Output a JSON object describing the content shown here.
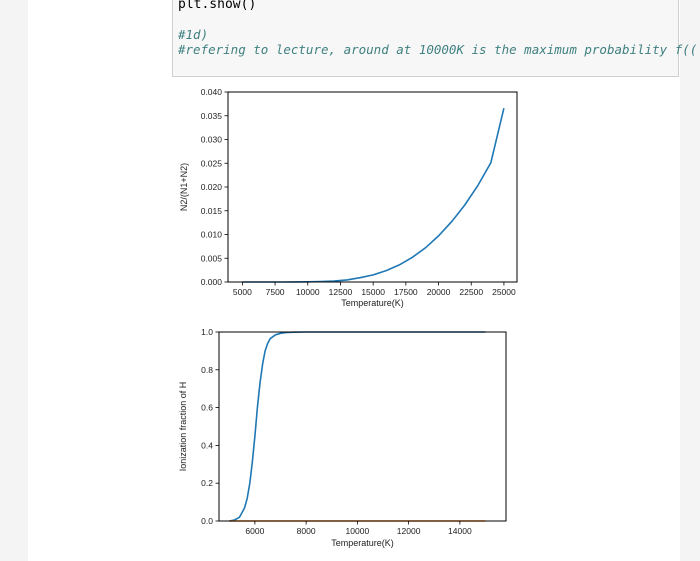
{
  "code_cell": {
    "line1": "plt.show()",
    "line2": "#1d)",
    "line3": "#refering to lecture, around at 10000K is the maximum probability f(("
  },
  "chart_data": [
    {
      "type": "line",
      "title": "",
      "xlabel": "Temperature(K)",
      "ylabel": "N2/(N1+N2)",
      "xlim": [
        3900,
        26000
      ],
      "ylim": [
        0,
        0.04
      ],
      "xticks": [
        5000,
        7500,
        10000,
        12500,
        15000,
        17500,
        20000,
        22500,
        25000
      ],
      "yticks": [
        0.0,
        0.005,
        0.01,
        0.015,
        0.02,
        0.025,
        0.03,
        0.035,
        0.04
      ],
      "xtick_labels": [
        "5000",
        "7500",
        "10000",
        "12500",
        "15000",
        "17500",
        "20000",
        "22500",
        "25000"
      ],
      "ytick_labels": [
        "0.000",
        "0.005",
        "0.010",
        "0.015",
        "0.020",
        "0.025",
        "0.030",
        "0.035",
        "0.040"
      ],
      "grid": false,
      "series": [
        {
          "color": "#1f77b4",
          "x": [
            5000,
            6000,
            7000,
            8000,
            9000,
            10000,
            11000,
            12000,
            13000,
            14000,
            15000,
            16000,
            17000,
            18000,
            19000,
            20000,
            21000,
            22000,
            23000,
            24000,
            25000
          ],
          "y": [
            0.0,
            0.0,
            0.0,
            1e-05,
            2e-05,
            5e-05,
            0.00011,
            0.0002,
            0.00045,
            0.0009,
            0.0015,
            0.0024,
            0.0036,
            0.0052,
            0.0072,
            0.0097,
            0.0127,
            0.0162,
            0.0203,
            0.0251,
            0.0366
          ]
        }
      ]
    },
    {
      "type": "line",
      "title": "",
      "xlabel": "Temperature(K)",
      "ylabel": "Ionization fraction of H",
      "xlim": [
        4600,
        15800
      ],
      "ylim": [
        0.0,
        1.0
      ],
      "xticks": [
        6000,
        8000,
        10000,
        12000,
        14000
      ],
      "yticks": [
        0.0,
        0.2,
        0.4,
        0.6,
        0.8,
        1.0
      ],
      "xtick_labels": [
        "6000",
        "8000",
        "10000",
        "12000",
        "14000"
      ],
      "ytick_labels": [
        "0.0",
        "0.2",
        "0.4",
        "0.6",
        "0.8",
        "1.0"
      ],
      "grid": false,
      "series": [
        {
          "color": "#1f77b4",
          "x": [
            5000,
            5200,
            5400,
            5600,
            5700,
            5800,
            5900,
            6000,
            6100,
            6200,
            6300,
            6400,
            6500,
            6600,
            6800,
            7000,
            7200,
            7500,
            8000,
            9000,
            10000,
            12000,
            14000,
            15000
          ],
          "y": [
            0.0,
            0.005,
            0.02,
            0.07,
            0.12,
            0.2,
            0.31,
            0.45,
            0.6,
            0.73,
            0.83,
            0.9,
            0.94,
            0.965,
            0.985,
            0.993,
            0.997,
            0.999,
            1.0,
            1.0,
            1.0,
            1.0,
            1.0,
            1.0
          ]
        },
        {
          "color": "#ff7f0e",
          "x": [
            5000,
            15000
          ],
          "y": [
            0.0,
            0.0
          ]
        }
      ]
    }
  ]
}
